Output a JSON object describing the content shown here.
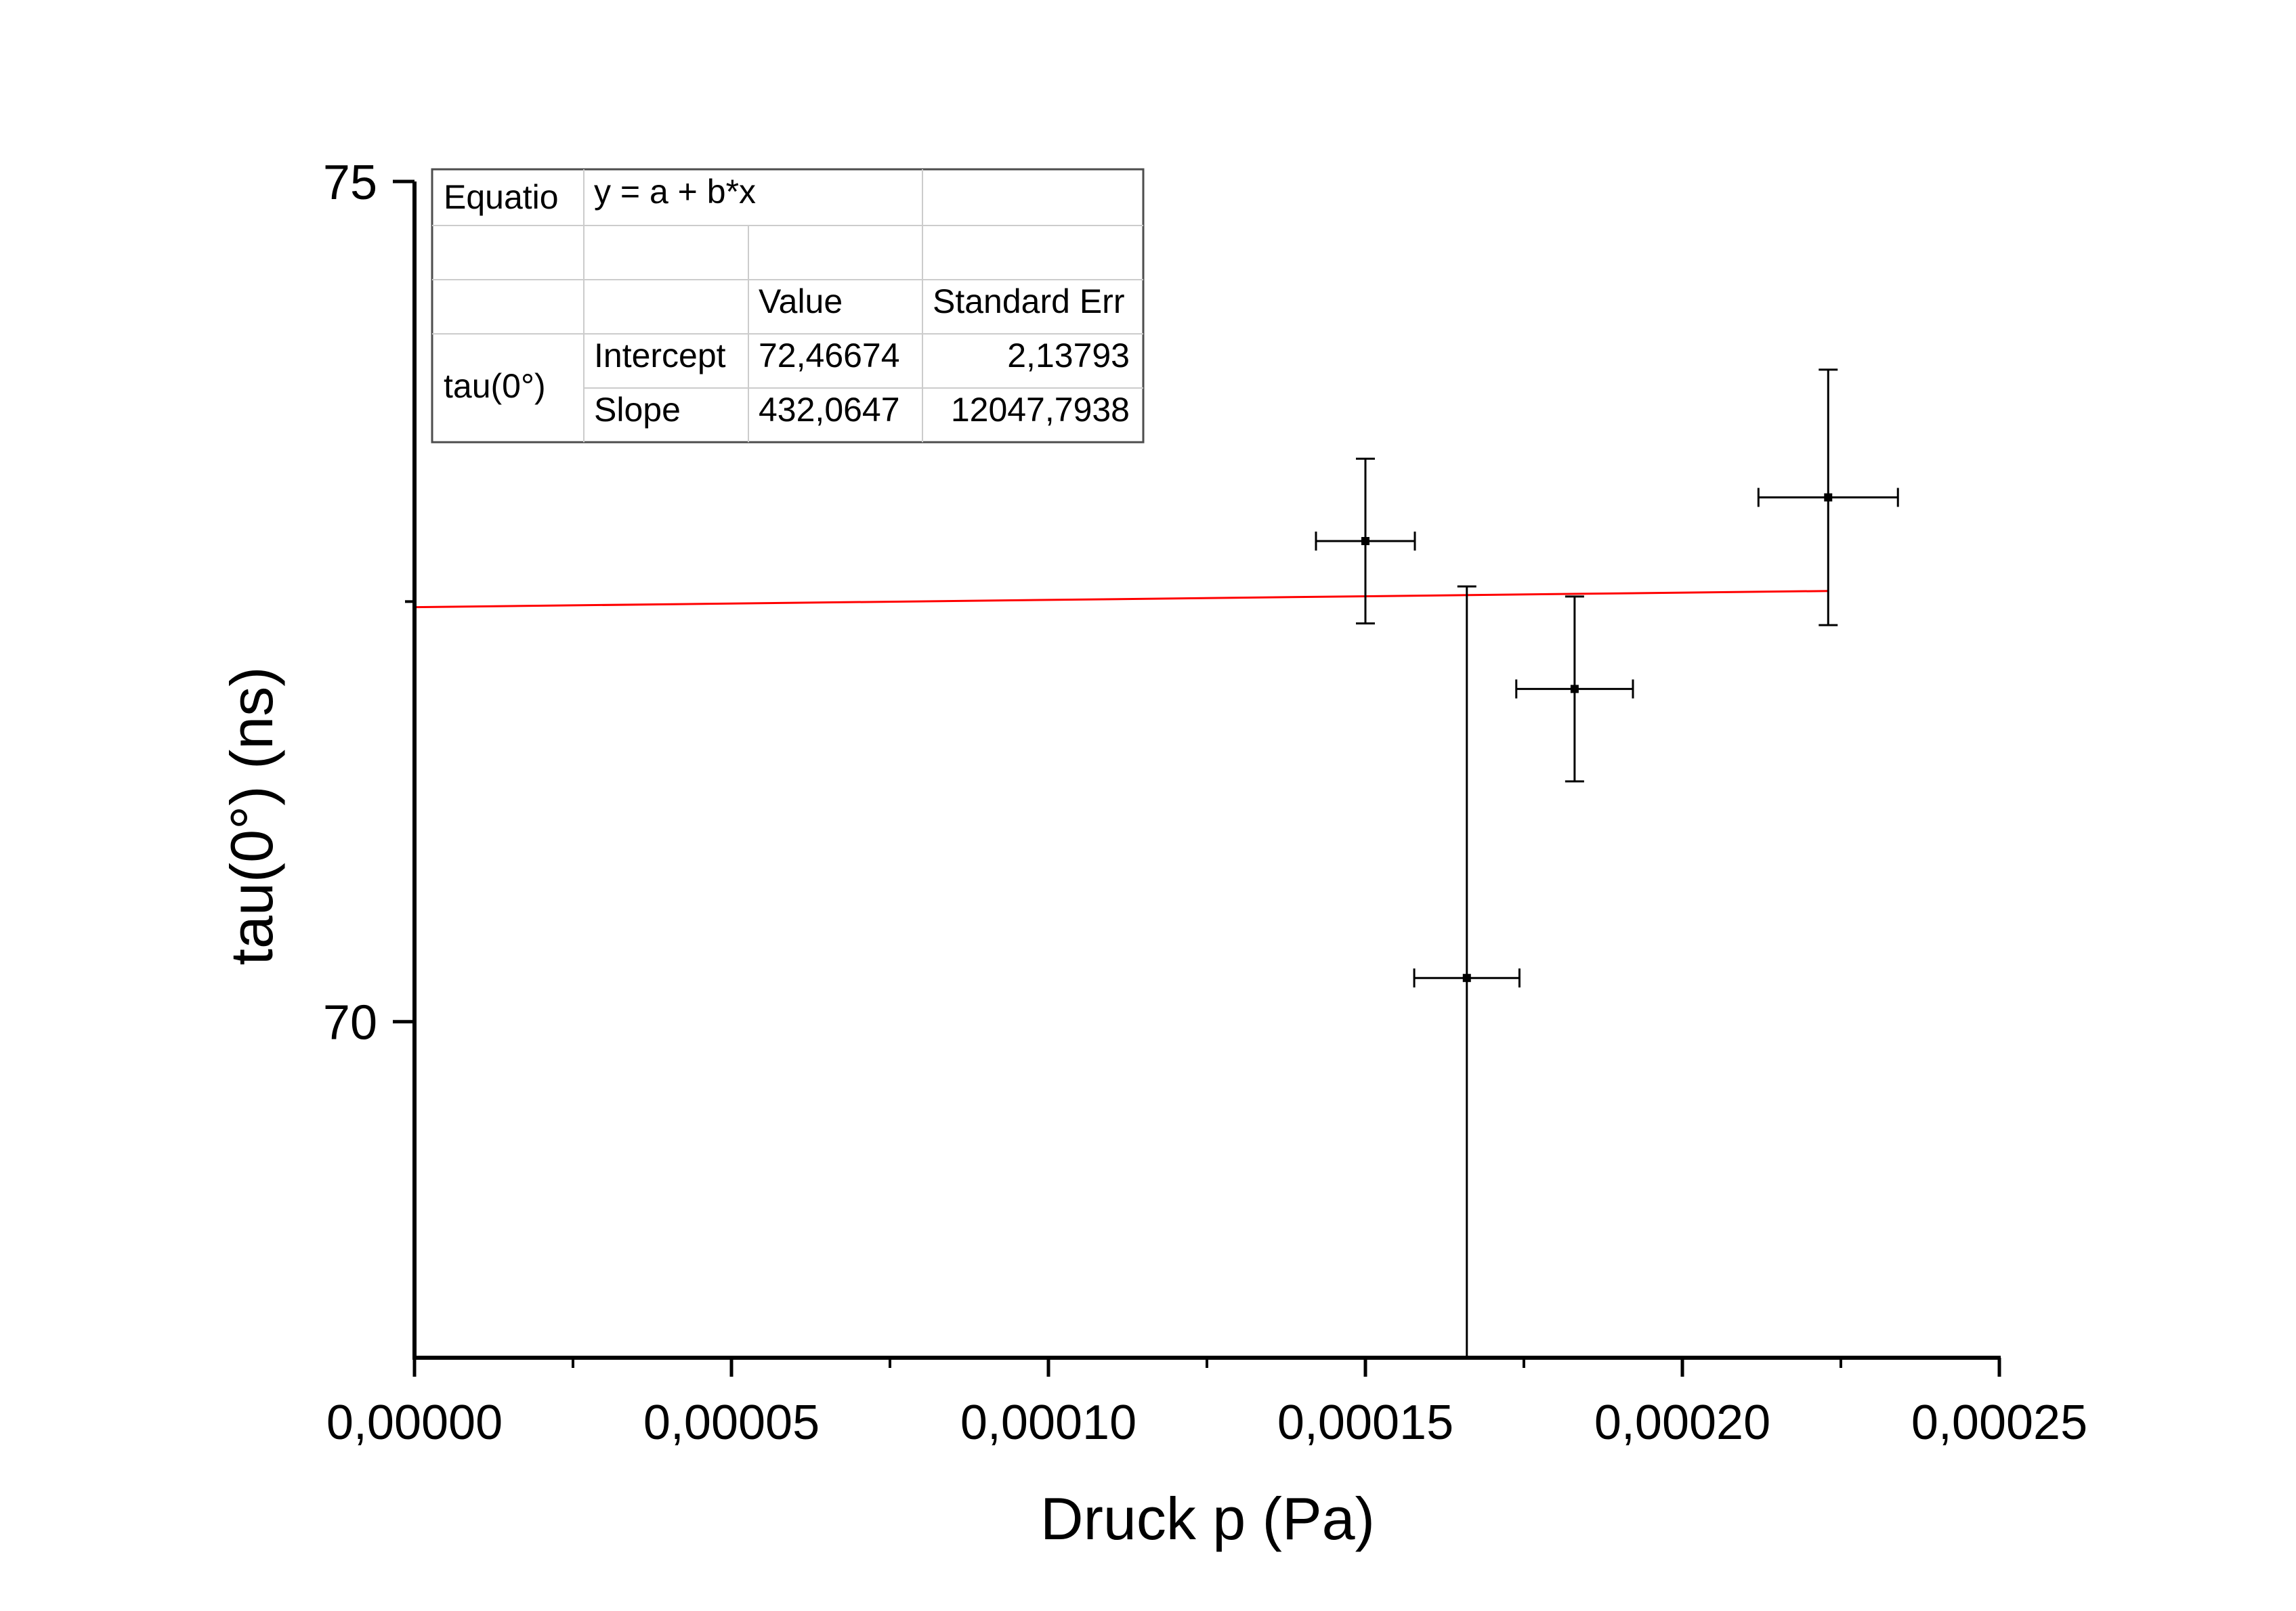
{
  "chart_data": {
    "type": "scatter",
    "xlabel": "Druck p (Pa)",
    "ylabel": "tau(0°) (ns)",
    "xlim": [
      0,
      0.00025
    ],
    "ylim": [
      68,
      75
    ],
    "x_ticks": [
      0,
      5e-05,
      0.0001,
      0.00015,
      0.0002,
      0.00025
    ],
    "x_tick_labels": [
      "0,00000",
      "0,00005",
      "0,00010",
      "0,00015",
      "0,00020",
      "0,00025"
    ],
    "y_ticks": [
      70,
      75
    ],
    "y_tick_labels": [
      "70",
      "75"
    ],
    "grid": false,
    "colors": {
      "fit": "#ff0000",
      "points": "#000000"
    },
    "series": [
      {
        "type": "scatter",
        "points": [
          {
            "x": 0.00015,
            "y": 72.86,
            "xerr": 7.8e-06,
            "yerr": 0.49
          },
          {
            "x": 0.000166,
            "y": 70.26,
            "xerr": 8.3e-06,
            "yerr": 2.33
          },
          {
            "x": 0.000183,
            "y": 71.98,
            "xerr": 9.2e-06,
            "yerr": 0.55
          },
          {
            "x": 0.000223,
            "y": 73.12,
            "xerr": 1.1e-05,
            "yerr": 0.76
          }
        ]
      },
      {
        "type": "line",
        "fit": {
          "intercept": 72.46674,
          "slope": 432.0647
        },
        "x_range": [
          0,
          0.000223
        ]
      }
    ],
    "legend_table": {
      "placement": "top-left",
      "equation_label": "Equatio",
      "equation": "y = a + b*x",
      "header": [
        "Value",
        "Standard Err"
      ],
      "row_group": "tau(0°)",
      "rows": [
        {
          "name": "Intercept",
          "value": "72,46674",
          "error": "2,13793"
        },
        {
          "name": "Slope",
          "value": "432,0647",
          "error": "12047,7938"
        }
      ]
    }
  }
}
